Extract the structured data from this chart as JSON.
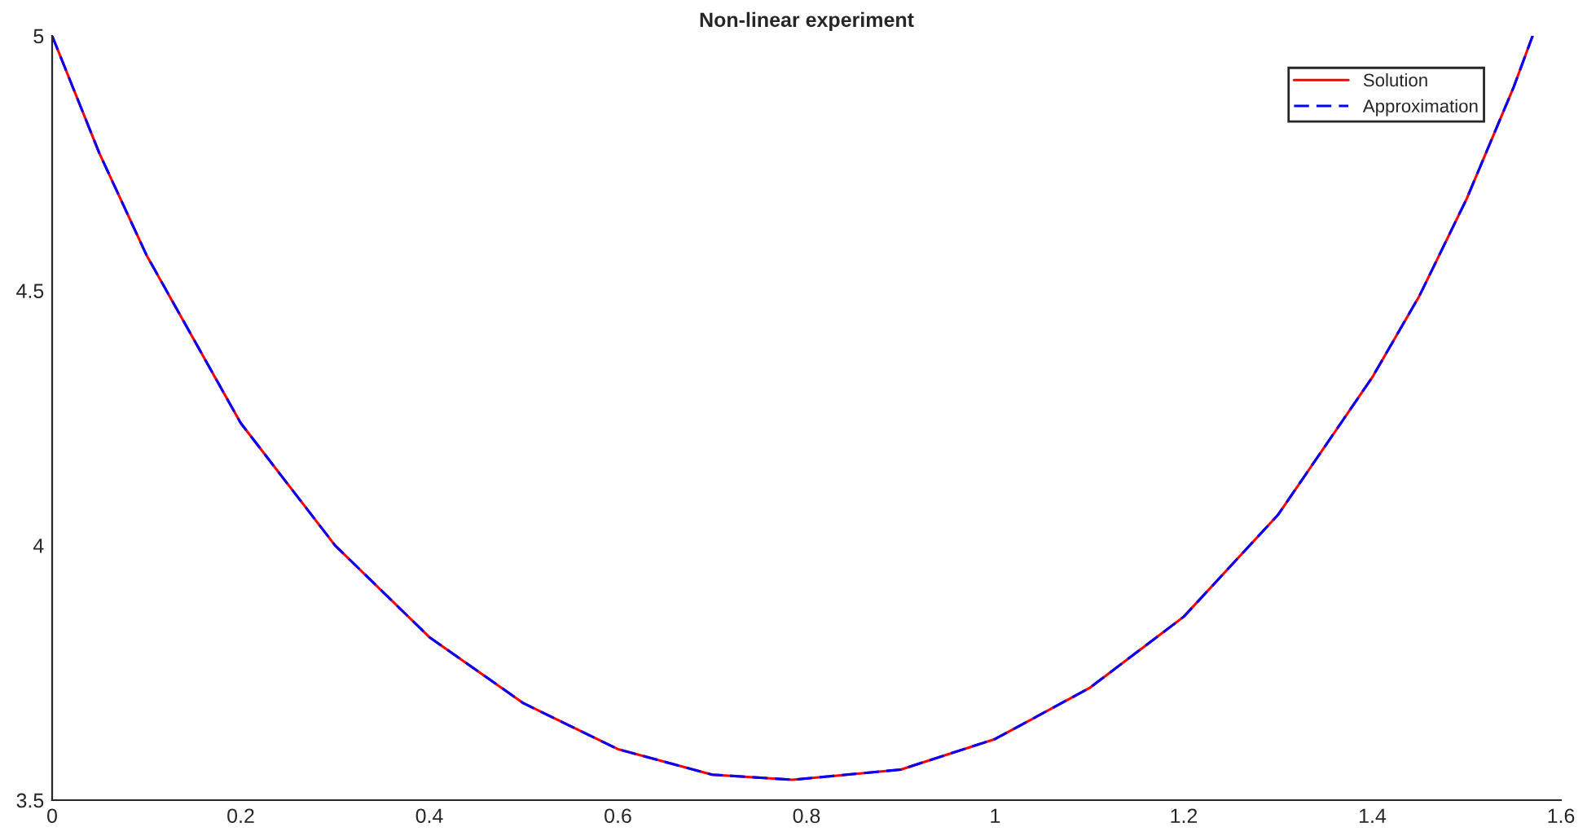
{
  "chart_data": {
    "type": "line",
    "title": "Non-linear experiment",
    "x": [
      0,
      0.05,
      0.1,
      0.2,
      0.3,
      0.4,
      0.5,
      0.6,
      0.7,
      0.785,
      0.9,
      1.0,
      1.1,
      1.2,
      1.3,
      1.4,
      1.45,
      1.5,
      1.55,
      1.57
    ],
    "series": [
      {
        "name": "Solution",
        "color": "#ff0000",
        "line_style": "solid",
        "values": [
          5,
          4.77,
          4.57,
          4.24,
          4.0,
          3.82,
          3.69,
          3.6,
          3.55,
          3.54,
          3.56,
          3.62,
          3.72,
          3.86,
          4.06,
          4.33,
          4.49,
          4.68,
          4.9,
          5.0
        ]
      },
      {
        "name": "Approximation",
        "color": "#0000ff",
        "line_style": "dashed",
        "values": [
          5,
          4.77,
          4.57,
          4.24,
          4.0,
          3.82,
          3.69,
          3.6,
          3.55,
          3.54,
          3.56,
          3.62,
          3.72,
          3.86,
          4.06,
          4.33,
          4.49,
          4.68,
          4.9,
          5.0
        ]
      }
    ],
    "xlim": [
      0,
      1.6
    ],
    "xticks": [
      0,
      0.2,
      0.4,
      0.6,
      0.8,
      1,
      1.2,
      1.4,
      1.6
    ],
    "ylim": [
      3.5,
      5
    ],
    "yticks": [
      3.5,
      4,
      4.5,
      5
    ],
    "grid": false,
    "legend": "top right"
  }
}
